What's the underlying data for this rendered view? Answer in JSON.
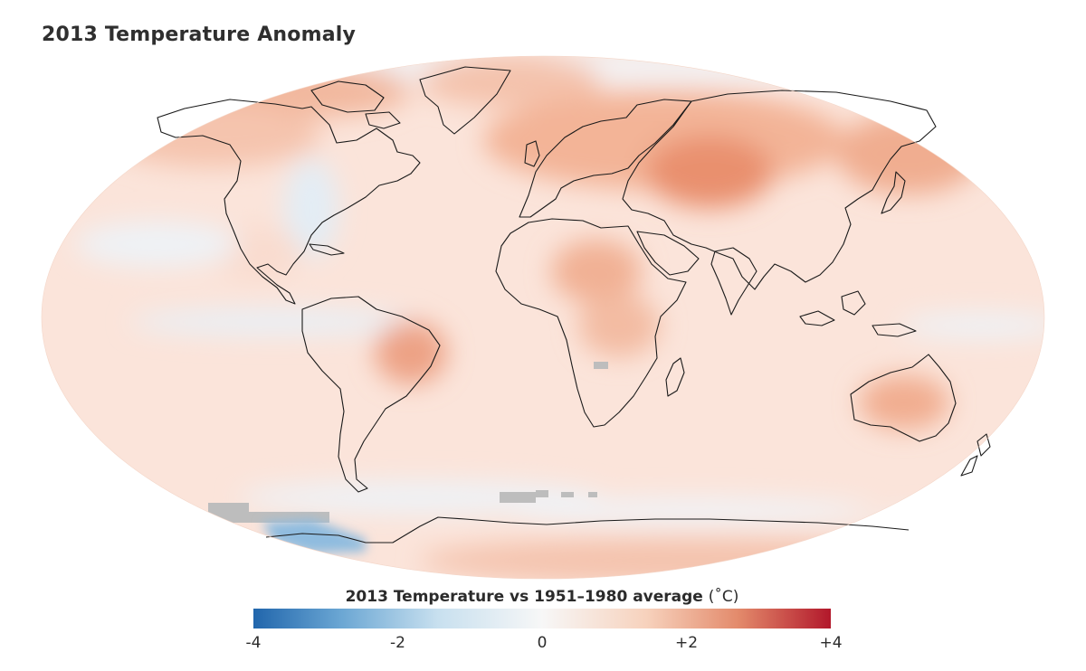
{
  "title": "2013 Temperature Anomaly",
  "legend": {
    "title": "2013 Temperature vs 1951–1980 average",
    "unit": "(˚C)",
    "min": -4,
    "max": 4,
    "ticks": [
      {
        "value": -4,
        "label": "-4"
      },
      {
        "value": -2,
        "label": "-2"
      },
      {
        "value": 0,
        "label": "0"
      },
      {
        "value": 2,
        "label": "+2"
      },
      {
        "value": 4,
        "label": "+4"
      }
    ],
    "colors": {
      "cold": "#2166ac",
      "neutral": "#f7f7f7",
      "warm": "#b2182b",
      "no_data": "#bdbdbd"
    }
  }
}
